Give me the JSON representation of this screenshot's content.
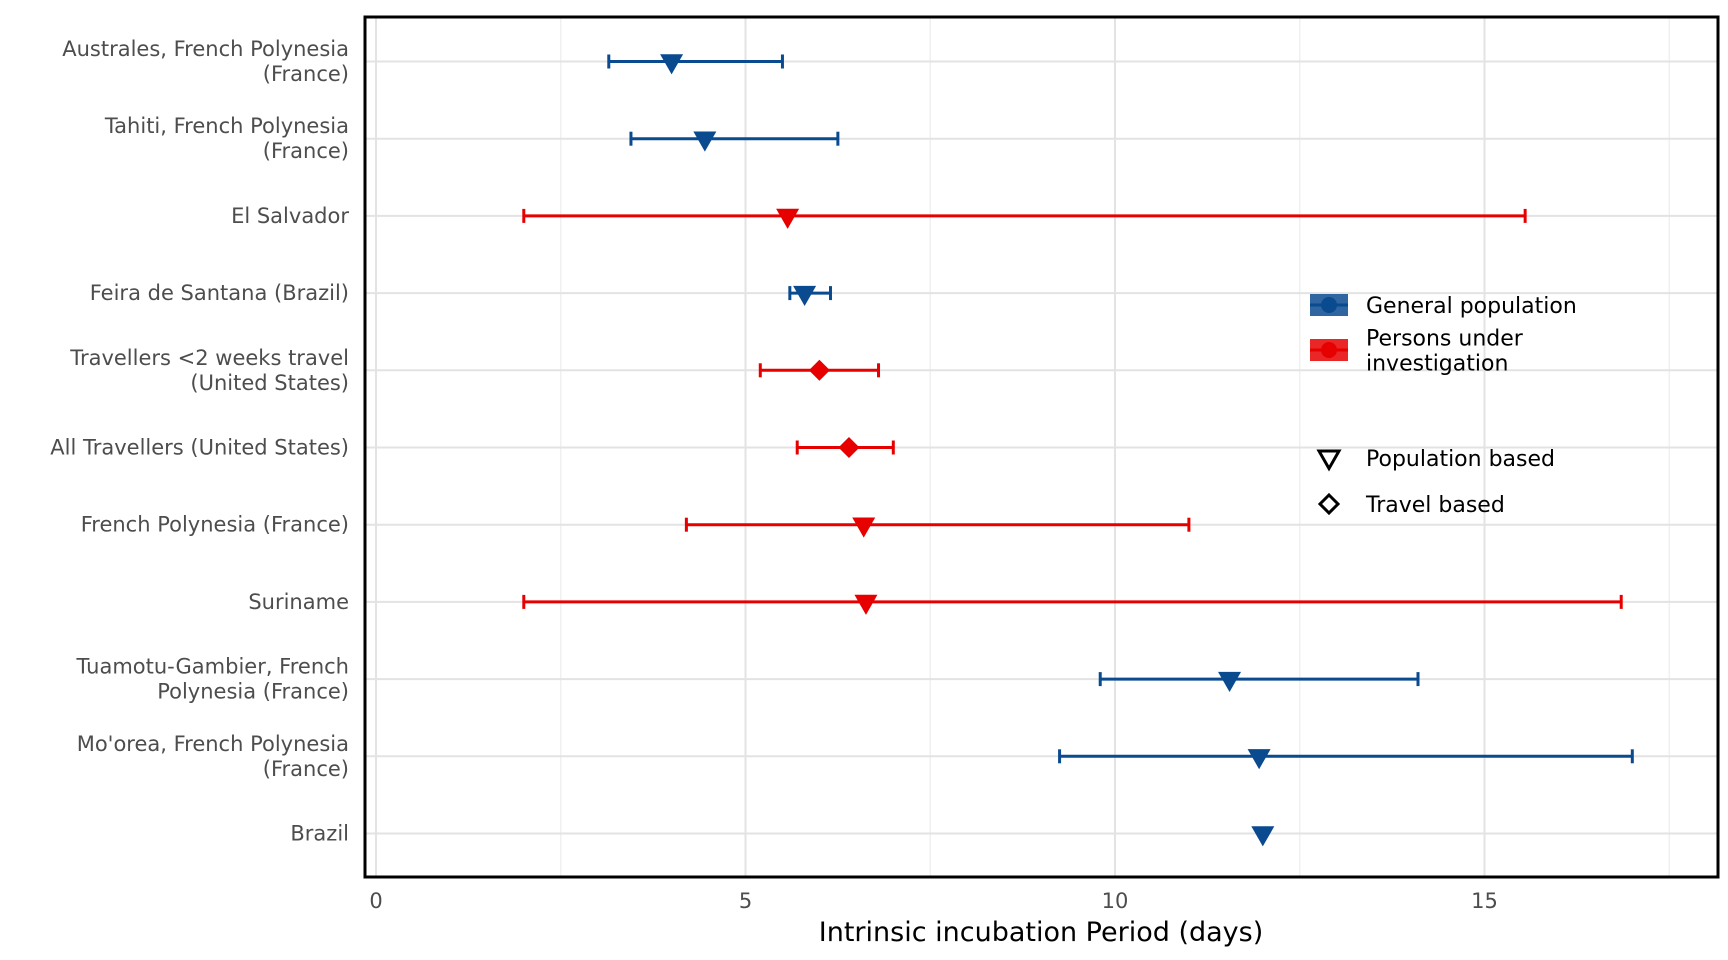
{
  "chart_data": {
    "type": "forest",
    "title": "",
    "xlabel": "Intrinsic incubation Period (days)",
    "ylabel": "",
    "xlim": [
      -0.3,
      18.2
    ],
    "x_ticks": [
      0,
      5,
      10,
      15
    ],
    "grid": true,
    "legend_position": "right",
    "legend": {
      "groups": [
        {
          "key": "general",
          "label": "General population",
          "color": "#0a4a8f"
        },
        {
          "key": "investigation",
          "label": "Persons under investigation",
          "label_lines": [
            "Persons under",
            "investigation"
          ],
          "color": "#e60000"
        }
      ],
      "methods": [
        {
          "key": "population",
          "label": "Population based",
          "shape": "triangle-down"
        },
        {
          "key": "travel",
          "label": "Travel based",
          "shape": "diamond"
        }
      ]
    },
    "rows": [
      {
        "label": "Australes, French Polynesia (France)",
        "label_lines": [
          "Australes, French Polynesia",
          "(France)"
        ],
        "estimate": 4.0,
        "lower": 3.15,
        "upper": 5.5,
        "group": "general",
        "method": "population"
      },
      {
        "label": "Tahiti, French Polynesia (France)",
        "label_lines": [
          "Tahiti, French Polynesia",
          "(France)"
        ],
        "estimate": 4.45,
        "lower": 3.45,
        "upper": 6.25,
        "group": "general",
        "method": "population"
      },
      {
        "label": "El Salvador",
        "label_lines": [
          "El Salvador"
        ],
        "estimate": 5.57,
        "lower": 2.0,
        "upper": 15.55,
        "group": "investigation",
        "method": "population"
      },
      {
        "label": "Feira de Santana (Brazil)",
        "label_lines": [
          "Feira de Santana (Brazil)"
        ],
        "estimate": 5.8,
        "lower": 5.6,
        "upper": 6.15,
        "group": "general",
        "method": "population"
      },
      {
        "label": "Travellers <2 weeks travel (United States)",
        "label_lines": [
          "Travellers <2 weeks travel",
          "(United States)"
        ],
        "estimate": 6.0,
        "lower": 5.2,
        "upper": 6.8,
        "group": "investigation",
        "method": "travel"
      },
      {
        "label": "All Travellers (United States)",
        "label_lines": [
          "All Travellers (United States)"
        ],
        "estimate": 6.4,
        "lower": 5.7,
        "upper": 7.0,
        "group": "investigation",
        "method": "travel"
      },
      {
        "label": "French Polynesia (France)",
        "label_lines": [
          "French Polynesia (France)"
        ],
        "estimate": 6.6,
        "lower": 4.2,
        "upper": 11.0,
        "group": "investigation",
        "method": "population"
      },
      {
        "label": "Suriname",
        "label_lines": [
          "Suriname"
        ],
        "estimate": 6.63,
        "lower": 2.0,
        "upper": 16.85,
        "group": "investigation",
        "method": "population"
      },
      {
        "label": "Tuamotu-Gambier, French Polynesia (France)",
        "label_lines": [
          "Tuamotu-Gambier, French",
          "Polynesia (France)"
        ],
        "estimate": 11.55,
        "lower": 9.8,
        "upper": 14.1,
        "group": "general",
        "method": "population"
      },
      {
        "label": "Mo'orea, French Polynesia (France)",
        "label_lines": [
          "Mo'orea, French Polynesia",
          "(France)"
        ],
        "estimate": 11.95,
        "lower": 9.25,
        "upper": 17.0,
        "group": "general",
        "method": "population"
      },
      {
        "label": "Brazil",
        "label_lines": [
          "Brazil"
        ],
        "estimate": 12.0,
        "lower": null,
        "upper": null,
        "group": "general",
        "method": "population"
      }
    ]
  }
}
